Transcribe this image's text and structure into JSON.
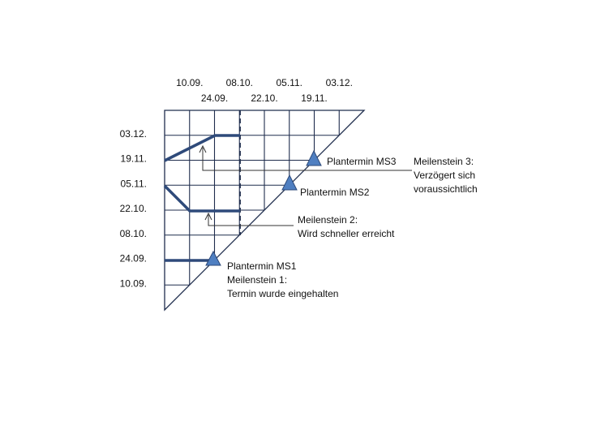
{
  "columns": [
    "10.09.",
    "24.09.",
    "08.10.",
    "22.10.",
    "05.11.",
    "19.11.",
    "03.12."
  ],
  "rows": [
    "03.12.",
    "19.11.",
    "05.11.",
    "22.10.",
    "08.10.",
    "24.09.",
    "10.09."
  ],
  "milestones": [
    {
      "label": "Plantermin MS1"
    },
    {
      "label": "Plantermin MS2"
    },
    {
      "label": "Plantermin MS3"
    }
  ],
  "annotations": [
    {
      "lines": [
        "Meilenstein 1:",
        "Termin wurde eingehalten"
      ]
    },
    {
      "lines": [
        "Meilenstein 2:",
        "Wird schneller erreicht"
      ]
    },
    {
      "lines": [
        "Meilenstein 3:",
        "Verzögert sich",
        "voraussichtlich"
      ]
    }
  ]
}
